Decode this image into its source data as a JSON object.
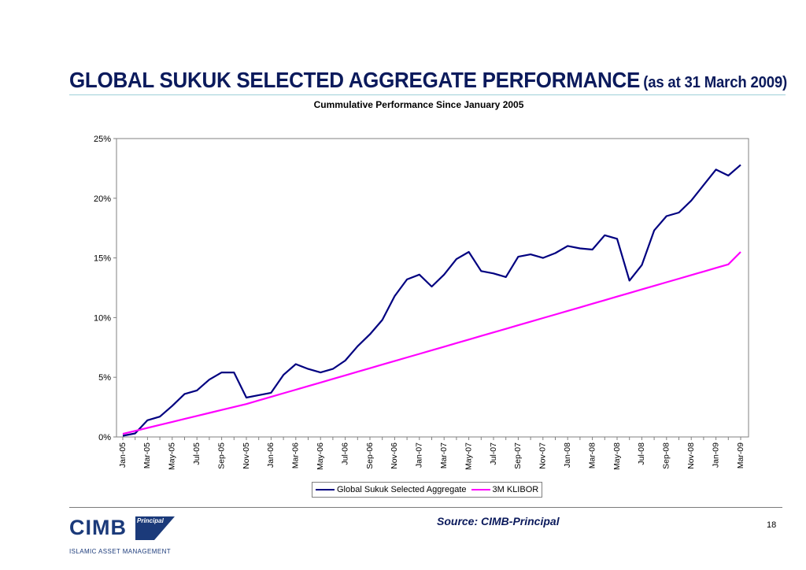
{
  "slide": {
    "title": "GLOBAL SUKUK SELECTED AGGREGATE PERFORMANCE",
    "title_note": "(as at 31 March 2009)",
    "source": "Source: CIMB-Principal",
    "page_number": "18",
    "logo": {
      "name": "CIMB",
      "badge": "Principal",
      "tagline": "ISLAMIC ASSET MANAGEMENT"
    },
    "colors": {
      "title": "#0b1a5c",
      "logo": "#1b3a7a",
      "rule": "#9fcfd8"
    }
  },
  "chart_data": {
    "type": "line",
    "title": "Cummulative Performance Since January 2005",
    "ylim": [
      0,
      25
    ],
    "yticks": [
      0,
      5,
      10,
      15,
      20,
      25
    ],
    "ytick_labels": [
      "0%",
      "5%",
      "10%",
      "15%",
      "20%",
      "25%"
    ],
    "x": [
      "Jan-05",
      "Feb-05",
      "Mar-05",
      "Apr-05",
      "May-05",
      "Jun-05",
      "Jul-05",
      "Aug-05",
      "Sep-05",
      "Oct-05",
      "Nov-05",
      "Dec-05",
      "Jan-06",
      "Feb-06",
      "Mar-06",
      "Apr-06",
      "May-06",
      "Jun-06",
      "Jul-06",
      "Aug-06",
      "Sep-06",
      "Oct-06",
      "Nov-06",
      "Dec-06",
      "Jan-07",
      "Feb-07",
      "Mar-07",
      "Apr-07",
      "May-07",
      "Jun-07",
      "Jul-07",
      "Aug-07",
      "Sep-07",
      "Oct-07",
      "Nov-07",
      "Dec-07",
      "Jan-08",
      "Feb-08",
      "Mar-08",
      "Apr-08",
      "May-08",
      "Jun-08",
      "Jul-08",
      "Aug-08",
      "Sep-08",
      "Oct-08",
      "Nov-08",
      "Dec-08",
      "Jan-09",
      "Feb-09",
      "Mar-09"
    ],
    "x_tick_labels": [
      "Jan-05",
      "Mar-05",
      "May-05",
      "Jul-05",
      "Sep-05",
      "Nov-05",
      "Jan-06",
      "Mar-06",
      "May-06",
      "Jul-06",
      "Sep-06",
      "Nov-06",
      "Jan-07",
      "Mar-07",
      "May-07",
      "Jul-07",
      "Sep-07",
      "Nov-07",
      "Jan-08",
      "Mar-08",
      "May-08",
      "Jul-08",
      "Sep-08",
      "Nov-08",
      "Jan-09",
      "Mar-09"
    ],
    "series": [
      {
        "name": "Global Sukuk Selected Aggregate",
        "color": "#000080",
        "values": [
          0.1,
          0.3,
          1.4,
          1.7,
          2.6,
          3.6,
          3.9,
          4.8,
          5.4,
          5.4,
          3.3,
          3.5,
          3.7,
          5.2,
          6.1,
          5.7,
          5.4,
          5.7,
          6.4,
          7.6,
          8.6,
          9.8,
          11.8,
          13.2,
          13.6,
          12.6,
          13.6,
          14.9,
          15.5,
          13.9,
          13.7,
          13.4,
          15.1,
          15.3,
          15.0,
          15.4,
          16.0,
          15.8,
          15.7,
          16.9,
          16.6,
          13.1,
          14.4,
          17.3,
          18.5,
          18.8,
          19.8,
          21.1,
          22.4,
          21.9,
          22.8
        ]
      },
      {
        "name": "3M KLIBOR",
        "color": "#ff00ff",
        "values": [
          0.26,
          0.51,
          0.76,
          1.01,
          1.26,
          1.51,
          1.76,
          2.01,
          2.26,
          2.51,
          2.76,
          3.06,
          3.36,
          3.66,
          3.96,
          4.26,
          4.56,
          4.86,
          5.16,
          5.46,
          5.76,
          6.06,
          6.36,
          6.66,
          6.96,
          7.26,
          7.56,
          7.86,
          8.16,
          8.46,
          8.76,
          9.06,
          9.36,
          9.66,
          9.96,
          10.26,
          10.56,
          10.86,
          11.16,
          11.46,
          11.76,
          12.06,
          12.36,
          12.66,
          12.96,
          13.26,
          13.56,
          13.86,
          14.16,
          14.46,
          15.5
        ]
      }
    ],
    "legend_position": "bottom",
    "grid": false
  }
}
